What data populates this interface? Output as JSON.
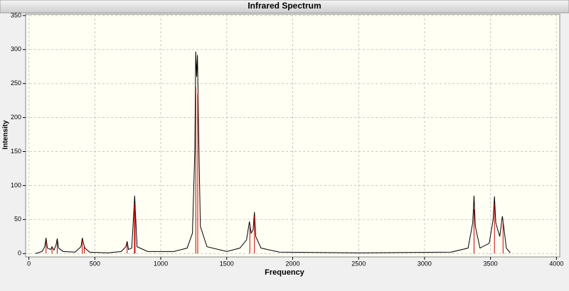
{
  "chart_data": {
    "type": "spectrum",
    "title": "Infrared Spectrum",
    "x_label": "Frequency",
    "y_label": "Intensity",
    "xlim": [
      -25,
      4025
    ],
    "ylim": [
      -5,
      352
    ],
    "xticks": [
      0,
      500,
      1000,
      1500,
      2000,
      2500,
      3000,
      3500,
      4000
    ],
    "yticks": [
      0,
      50,
      100,
      150,
      200,
      250,
      300,
      350
    ],
    "grid": true,
    "series": [
      {
        "color": "#000000",
        "style": "line",
        "x": [
          50,
          100,
          120,
          130,
          140,
          165,
          175,
          190,
          205,
          215,
          225,
          260,
          350,
          395,
          405,
          415,
          425,
          460,
          600,
          700,
          735,
          745,
          755,
          780,
          795,
          802,
          808,
          820,
          900,
          1100,
          1200,
          1240,
          1258,
          1265,
          1272,
          1278,
          1285,
          1300,
          1350,
          1500,
          1600,
          1650,
          1672,
          1685,
          1700,
          1710,
          1720,
          1760,
          1900,
          2500,
          3200,
          3330,
          3365,
          3375,
          3385,
          3420,
          3490,
          3520,
          3530,
          3540,
          3570,
          3590,
          3600,
          3620,
          3650
        ],
        "values": [
          0,
          3,
          10,
          23,
          8,
          6,
          10,
          5,
          12,
          22,
          8,
          3,
          2,
          10,
          23,
          14,
          8,
          2,
          1,
          3,
          10,
          18,
          6,
          8,
          60,
          85,
          60,
          10,
          3,
          3,
          8,
          30,
          150,
          297,
          260,
          292,
          200,
          40,
          10,
          3,
          8,
          20,
          47,
          30,
          35,
          61,
          25,
          8,
          2,
          1,
          2,
          8,
          45,
          85,
          40,
          8,
          15,
          50,
          84,
          45,
          25,
          55,
          40,
          8,
          1
        ]
      },
      {
        "color": "#cc0000",
        "style": "stick",
        "x": [
          130,
          175,
          215,
          405,
          420,
          745,
          800,
          805,
          1265,
          1280,
          1675,
          1710,
          3375,
          3530,
          3595
        ],
        "values": [
          18,
          8,
          18,
          20,
          10,
          15,
          72,
          68,
          245,
          235,
          40,
          55,
          65,
          73,
          48
        ]
      }
    ]
  }
}
